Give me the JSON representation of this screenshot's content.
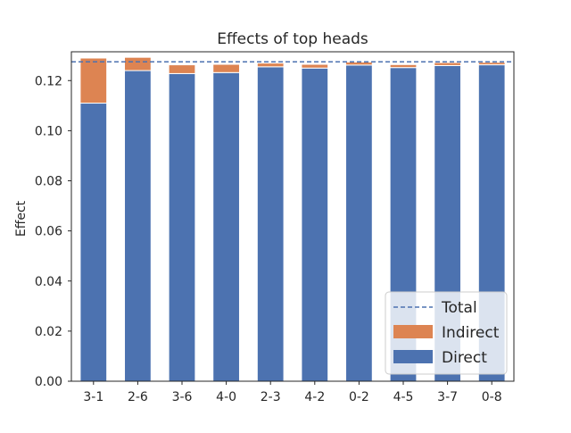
{
  "chart_data": {
    "type": "bar",
    "stacked": true,
    "title": "Effects of top heads",
    "xlabel": "",
    "ylabel": "Effect",
    "categories": [
      "3-1",
      "2-6",
      "3-6",
      "4-0",
      "2-3",
      "4-2",
      "0-2",
      "4-5",
      "3-7",
      "0-8"
    ],
    "series": [
      {
        "name": "Direct",
        "color": "#4c72b0",
        "values": [
          0.111,
          0.124,
          0.1228,
          0.1232,
          0.1255,
          0.125,
          0.1262,
          0.1252,
          0.126,
          0.1263
        ]
      },
      {
        "name": "Indirect",
        "color": "#dd8452",
        "values": [
          0.018,
          0.0053,
          0.0035,
          0.0033,
          0.0015,
          0.0015,
          0.0012,
          0.0012,
          0.0012,
          0.001
        ]
      }
    ],
    "reference_line": {
      "name": "Total",
      "value": 0.1275,
      "color": "#4c72b0",
      "style": "dashed"
    },
    "ylim": [
      0,
      0.1315
    ],
    "yticks": [
      0.0,
      0.02,
      0.04,
      0.06,
      0.08,
      0.1,
      0.12
    ],
    "ytick_labels": [
      "0.00",
      "0.02",
      "0.04",
      "0.06",
      "0.08",
      "0.10",
      "0.12"
    ],
    "grid": false,
    "legend": {
      "position": "lower-right",
      "entries": [
        "Total",
        "Indirect",
        "Direct"
      ]
    }
  }
}
